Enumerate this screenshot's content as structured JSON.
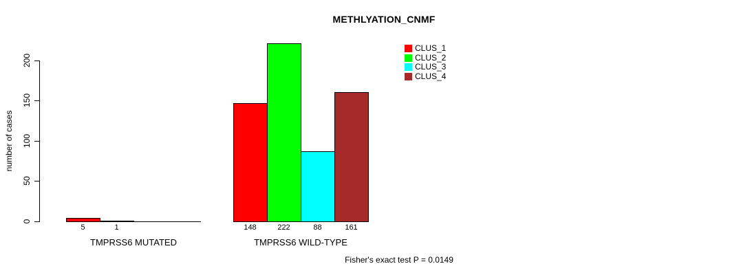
{
  "chart_data": {
    "type": "bar",
    "title": "METHLYATION_CNMF",
    "ylabel": "number of cases",
    "xlabel": "",
    "ylim": [
      0,
      200
    ],
    "yticks": [
      0,
      50,
      100,
      150,
      200
    ],
    "grid": false,
    "legend_position": "top-right",
    "categories": [
      "TMPRSS6 MUTATED",
      "TMPRSS6 WILD-TYPE"
    ],
    "series": [
      {
        "name": "CLUS_1",
        "color": "#FF0000",
        "values": [
          5,
          148
        ]
      },
      {
        "name": "CLUS_2",
        "color": "#00FF00",
        "values": [
          1,
          222
        ]
      },
      {
        "name": "CLUS_3",
        "color": "#00FFFF",
        "values": [
          0,
          88
        ]
      },
      {
        "name": "CLUS_4",
        "color": "#A52A2A",
        "values": [
          0,
          161
        ]
      }
    ],
    "bar_value_labels_shown": [
      "5",
      "1",
      "148",
      "222",
      "88",
      "161"
    ],
    "show_zero_value_labels": false,
    "footnote": "Fisher's exact test P = 0.0149"
  },
  "colors": {
    "background": "#FFFFFF",
    "axis": "#000000",
    "bar_border": "#000000",
    "text": "#000000"
  }
}
